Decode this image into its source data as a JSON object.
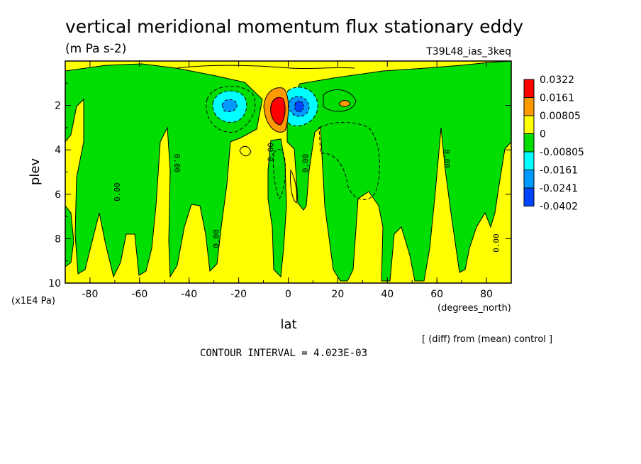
{
  "chart_data": {
    "type": "heatmap",
    "title": "vertical meridional momentum flux stationary eddy",
    "subtitle": "(m Pa s-2)",
    "experiment": "T39L48_ias_3keq",
    "xlabel": "lat",
    "x_units": "(degrees_north)",
    "ylabel": "plev",
    "y_units": "(x1E4 Pa)",
    "xlim": [
      -90,
      90
    ],
    "ylim": [
      10,
      0
    ],
    "x_ticks": [
      -80,
      -60,
      -40,
      -20,
      0,
      20,
      40,
      60,
      80
    ],
    "y_ticks": [
      2,
      4,
      6,
      8,
      10
    ],
    "x_tick_labels": [
      "-80",
      "-60",
      "-40",
      "-20",
      "0",
      "20",
      "40",
      "60",
      "80"
    ],
    "y_tick_labels": [
      "2",
      "4",
      "6",
      "8",
      "10"
    ],
    "legend": {
      "placement": "right",
      "levels": [
        "0.0322",
        "0.0161",
        "0.00805",
        "0",
        "-0.00805",
        "-0.0161",
        "-0.0241",
        "-0.0402"
      ],
      "colors": [
        "#ff0000",
        "#ff9900",
        "#ffff00",
        "#00dd00",
        "#00ffff",
        "#0099ff",
        "#0044ff"
      ]
    },
    "contour_labels": [
      {
        "text": "0.00",
        "lat": -68,
        "plev": 5.9,
        "rotate": -90
      },
      {
        "text": "0.00",
        "lat": -46,
        "plev": 4.6,
        "rotate": 90
      },
      {
        "text": "0.00",
        "lat": -28,
        "plev": 8.0,
        "rotate": -90
      },
      {
        "text": "0.00",
        "lat": -6,
        "plev": 4.1,
        "rotate": -90
      },
      {
        "text": "0.00",
        "lat": 8,
        "plev": 4.6,
        "rotate": -90
      },
      {
        "text": "0.00",
        "lat": 63,
        "plev": 4.4,
        "rotate": 90
      },
      {
        "text": "0.00",
        "lat": 85,
        "plev": 8.2,
        "rotate": -90
      }
    ],
    "features": [
      {
        "sign": "positive",
        "lat": -3,
        "plev": 2.1,
        "max_level": "0.0322"
      },
      {
        "sign": "negative",
        "lat": 4,
        "plev": 2.0,
        "min_level": "-0.0241"
      },
      {
        "sign": "negative",
        "lat": -24,
        "plev": 2.1,
        "min_level": "-0.0161"
      },
      {
        "sign": "positive",
        "lat": 23,
        "plev": 2.0,
        "max_level": "0.00805"
      }
    ],
    "contour_interval": "CONTOUR INTERVAL = 4.023E-03",
    "footnote": "[ (diff) from (mean) control ]"
  }
}
